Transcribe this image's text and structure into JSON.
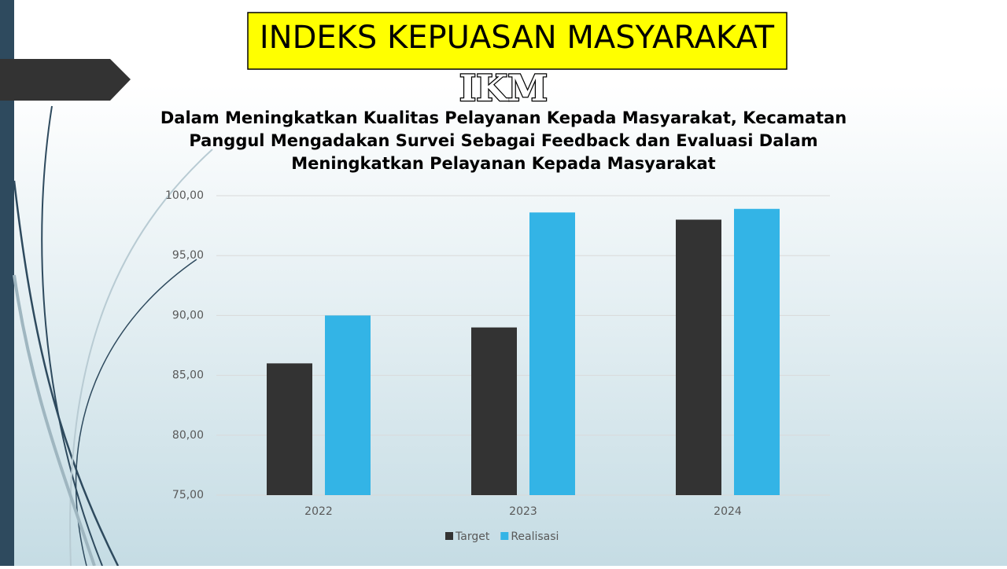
{
  "header": {
    "title": "INDEKS KEPUASAN MASYARAKAT",
    "subtitle": "IKM"
  },
  "chart_data": {
    "type": "bar",
    "title": "Dalam Meningkatkan Kualitas Pelayanan Kepada Masyarakat, Kecamatan Panggul Mengadakan Survei Sebagai Feedback dan Evaluasi Dalam Meningkatkan Pelayanan Kepada Masyarakat",
    "categories": [
      "2022",
      "2023",
      "2024"
    ],
    "series": [
      {
        "name": "Target",
        "color": "#333333",
        "values": [
          86,
          89,
          98
        ]
      },
      {
        "name": "Realisasi",
        "color": "#33b4e6",
        "values": [
          90,
          98.6,
          98.9
        ]
      }
    ],
    "ylim": [
      75,
      100
    ],
    "yticks": [
      {
        "value": 75,
        "label": "75,00"
      },
      {
        "value": 80,
        "label": "80,00"
      },
      {
        "value": 85,
        "label": "85,00"
      },
      {
        "value": 90,
        "label": "90,00"
      },
      {
        "value": 95,
        "label": "95,00"
      },
      {
        "value": 100,
        "label": "100,00"
      }
    ],
    "grid": true,
    "legend": "bottom"
  }
}
